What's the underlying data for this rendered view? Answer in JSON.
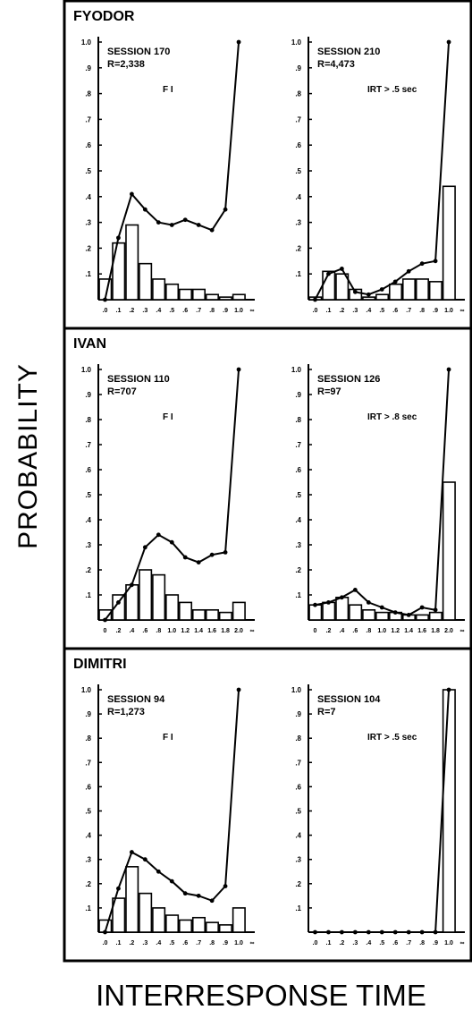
{
  "figure": {
    "ylabel": "PROBABILITY",
    "xlabel": "INTERRESPONSE TIME",
    "y_tick_labels": [
      ".1",
      ".2",
      ".3",
      ".4",
      ".5",
      ".6",
      ".7",
      ".8",
      ".9",
      "1.0"
    ],
    "x_tick_labels_a": [
      ".0",
      ".1",
      ".2",
      ".3",
      ".4",
      ".5",
      ".6",
      ".7",
      ".8",
      ".9",
      "1.0",
      "∞"
    ],
    "x_tick_labels_b": [
      "0",
      ".2",
      ".4",
      ".6",
      ".8",
      "1.0",
      "1.2",
      "1.4",
      "1.6",
      "1.8",
      "2.0",
      "∞"
    ]
  },
  "chart_data": [
    {
      "type": "bar",
      "row": 0,
      "subject": "FYODOR",
      "session": "SESSION 170",
      "r": "R=2,338",
      "condition": "F I",
      "xlabel": "INTERRESPONSE TIME",
      "ylabel": "PROBABILITY",
      "ylim": [
        0,
        1.0
      ],
      "xticks": "a",
      "values": [
        0.08,
        0.22,
        0.29,
        0.14,
        0.08,
        0.06,
        0.04,
        0.04,
        0.02,
        0.01,
        0.02
      ],
      "line": [
        0.0,
        0.24,
        0.41,
        0.35,
        0.3,
        0.29,
        0.31,
        0.29,
        0.27,
        0.35,
        1.0
      ]
    },
    {
      "type": "bar",
      "row": 0,
      "subject": "",
      "session": "SESSION 210",
      "r": "R=4,473",
      "condition": "IRT > .5 sec",
      "xlabel": "INTERRESPONSE TIME",
      "ylabel": "PROBABILITY",
      "ylim": [
        0,
        1.0
      ],
      "xticks": "a",
      "values": [
        0.01,
        0.11,
        0.1,
        0.04,
        0.01,
        0.02,
        0.06,
        0.08,
        0.08,
        0.07,
        0.44
      ],
      "line": [
        0.0,
        0.1,
        0.12,
        0.03,
        0.02,
        0.04,
        0.07,
        0.11,
        0.14,
        0.15,
        1.0
      ]
    },
    {
      "type": "bar",
      "row": 1,
      "subject": "IVAN",
      "session": "SESSION 110",
      "r": "R=707",
      "condition": "F I",
      "xlabel": "INTERRESPONSE TIME",
      "ylabel": "PROBABILITY",
      "ylim": [
        0,
        1.0
      ],
      "xticks": "b",
      "values": [
        0.04,
        0.1,
        0.14,
        0.2,
        0.18,
        0.1,
        0.07,
        0.04,
        0.04,
        0.03,
        0.07
      ],
      "line": [
        0.0,
        0.07,
        0.14,
        0.29,
        0.34,
        0.31,
        0.25,
        0.23,
        0.26,
        0.27,
        1.0
      ]
    },
    {
      "type": "bar",
      "row": 1,
      "subject": "",
      "session": "SESSION 126",
      "r": "R=97",
      "condition": "IRT > .8 sec",
      "xlabel": "INTERRESPONSE TIME",
      "ylabel": "PROBABILITY",
      "ylim": [
        0,
        1.0
      ],
      "xticks": "b",
      "values": [
        0.06,
        0.07,
        0.09,
        0.06,
        0.04,
        0.03,
        0.03,
        0.02,
        0.02,
        0.03,
        0.55
      ],
      "line": [
        0.06,
        0.07,
        0.09,
        0.12,
        0.07,
        0.05,
        0.03,
        0.02,
        0.05,
        0.04,
        1.0
      ]
    },
    {
      "type": "bar",
      "row": 2,
      "subject": "DIMITRI",
      "session": "SESSION 94",
      "r": "R=1,273",
      "condition": "F I",
      "xlabel": "INTERRESPONSE TIME",
      "ylabel": "PROBABILITY",
      "ylim": [
        0,
        1.0
      ],
      "xticks": "a",
      "values": [
        0.05,
        0.14,
        0.27,
        0.16,
        0.1,
        0.07,
        0.05,
        0.06,
        0.04,
        0.03,
        0.1
      ],
      "line": [
        0.0,
        0.18,
        0.33,
        0.3,
        0.25,
        0.21,
        0.16,
        0.15,
        0.13,
        0.19,
        1.0
      ]
    },
    {
      "type": "bar",
      "row": 2,
      "subject": "",
      "session": "SESSION 104",
      "r": "R=7",
      "condition": "IRT > .5 sec",
      "xlabel": "INTERRESPONSE TIME",
      "ylabel": "PROBABILITY",
      "ylim": [
        0,
        1.0
      ],
      "xticks": "a",
      "values": [
        0,
        0,
        0,
        0,
        0,
        0,
        0,
        0,
        0,
        0,
        1.0
      ],
      "line": [
        0,
        0,
        0,
        0,
        0,
        0,
        0,
        0,
        0,
        0,
        1.0
      ]
    }
  ]
}
